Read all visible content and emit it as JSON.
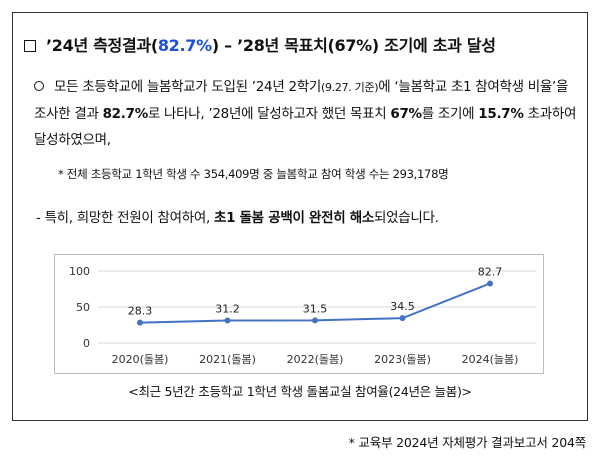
{
  "headline": {
    "prefix": "’24년 측정결과(",
    "highlight": "82.7%",
    "suffix": ") – ’28년 목표치(67%) 조기에 초과 달성"
  },
  "paragraph": {
    "part1": "모든 초등학교에 늘봄학교가 도입된 ’24년 2학기",
    "part1_small": "(9.27. 기준)",
    "part2": "에 ‘늘봄학교 초1 참여학생 비율’을 조사한 결과 ",
    "bold1": "82.7%",
    "part3": "로 나타나, ’28년에 달성하고자 했던 목표치 ",
    "bold2": "67%",
    "part4": "를 조기에 ",
    "bold3": "15.7%",
    "part5": " 초과하여 달성하였으며,"
  },
  "note": "* 전체 초등학교 1학년 학생 수 354,409명 중 늘봄학교 참여 학생 수는 293,178명",
  "dash_line": {
    "prefix": "- 특히, 희망한 전원이 참여하여, ",
    "bold": "초1 돌봄 공백이 완전히 해소",
    "suffix": "되었습니다."
  },
  "chart_data": {
    "type": "line",
    "categories": [
      "2020(돌봄)",
      "2021(돌봄)",
      "2022(돌봄)",
      "2023(돌봄)",
      "2024(늘봄)"
    ],
    "values": [
      28.3,
      31.2,
      31.5,
      34.5,
      82.7
    ],
    "value_labels": [
      "28.3",
      "31.2",
      "31.5",
      "34.5",
      "82.7"
    ],
    "yticks": [
      "0",
      "50",
      "100"
    ],
    "ylim": [
      0,
      100
    ],
    "grid": true,
    "line_color": "#4472c4"
  },
  "caption": "<최근 5년간 초등학교 1학년 학생 돌봄교실 참여율(24년은 늘봄)>",
  "source": "* 교육부 2024년 자체평가 결과보고서 204쪽"
}
